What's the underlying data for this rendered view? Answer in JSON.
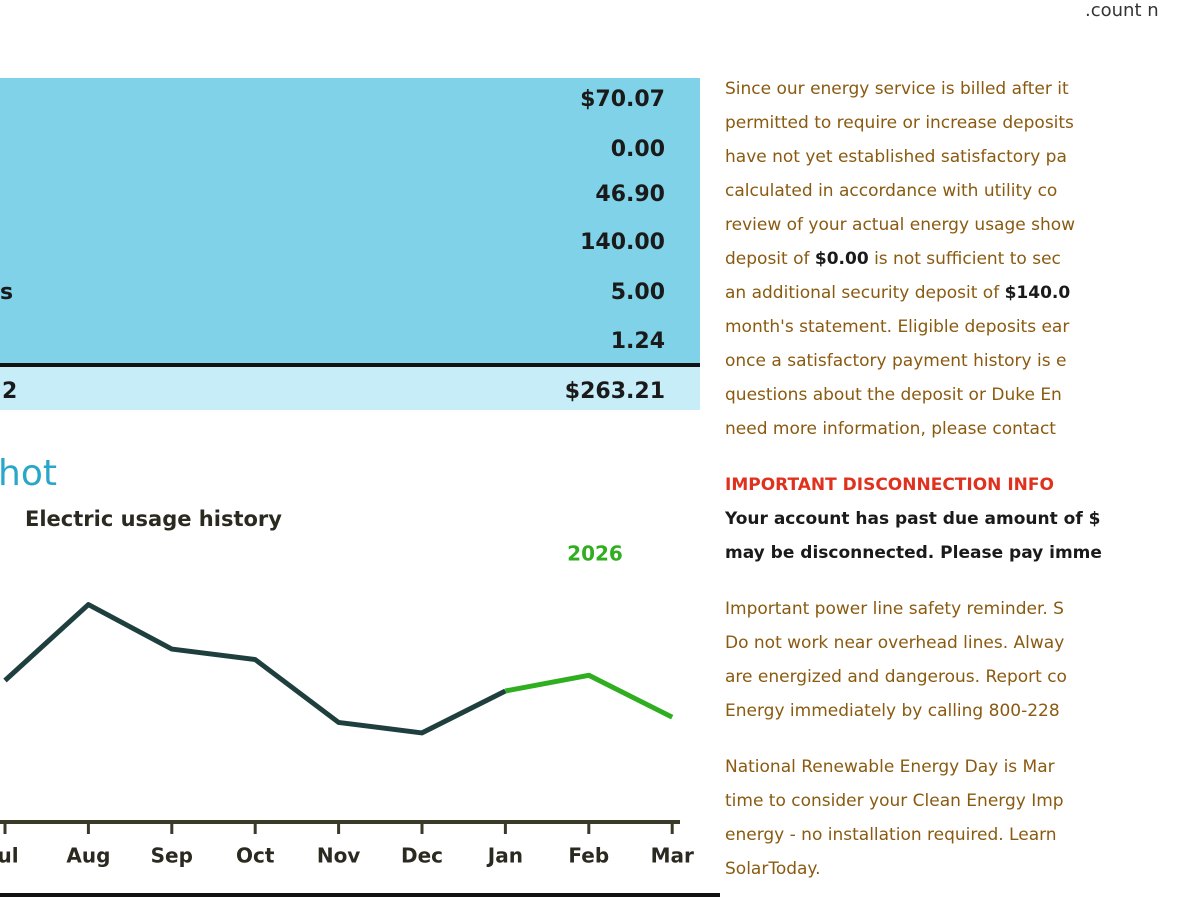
{
  "header": {
    "text": ".count n"
  },
  "charges": {
    "rows": [
      {
        "amount": "$70.07"
      },
      {
        "amount": "0.00"
      },
      {
        "amount": "46.90"
      },
      {
        "amount": "140.00"
      },
      {
        "label": "s",
        "amount": "5.00"
      },
      {
        "amount": "1.24"
      }
    ],
    "total": {
      "label": "2",
      "amount": "$263.21"
    }
  },
  "snapshot": {
    "title": "hot",
    "chart_data": {
      "type": "line",
      "title": "Electric usage history",
      "categories": [
        "ul",
        "Aug",
        "Sep",
        "Oct",
        "Nov",
        "Dec",
        "Jan",
        "Feb",
        "Mar"
      ],
      "ylim": [
        0,
        100
      ],
      "series": [
        {
          "color": "#1f3f3f",
          "values": [
            54,
            83,
            66,
            62,
            38,
            34,
            50,
            null,
            null
          ]
        },
        {
          "name": "2026",
          "color": "#2fae1f",
          "values": [
            null,
            null,
            null,
            null,
            null,
            null,
            50,
            56,
            40
          ]
        }
      ]
    }
  },
  "notices": {
    "deposit": [
      [
        "Since our energy service is billed after it"
      ],
      [
        "permitted to require or increase deposits"
      ],
      [
        "have not yet established satisfactory pa"
      ],
      [
        "calculated in accordance with utility co"
      ],
      [
        "review of your actual energy usage show"
      ],
      [
        "deposit of ",
        "$0.00",
        " is not sufficient to sec"
      ],
      [
        "an additional security deposit of ",
        "$140.0"
      ],
      [
        "month's statement. Eligible deposits ear"
      ],
      [
        "once a satisfactory payment history is e"
      ],
      [
        "questions about the deposit or Duke En"
      ],
      [
        "need more information, please contact"
      ]
    ],
    "disconnection_title": "IMPORTANT DISCONNECTION INFO",
    "disconnection": [
      "Your account has past due amount of $",
      "may be disconnected. Please pay imme"
    ],
    "safety": [
      "Important power line safety reminder. S",
      "Do not work near overhead lines. Alway",
      "are energized and dangerous. Report co",
      "Energy immediately by calling 800-228"
    ],
    "renewable": [
      "National Renewable Energy Day is Mar",
      "time to consider your Clean Energy Imp",
      "energy - no installation required. Learn",
      "SolarToday."
    ]
  }
}
